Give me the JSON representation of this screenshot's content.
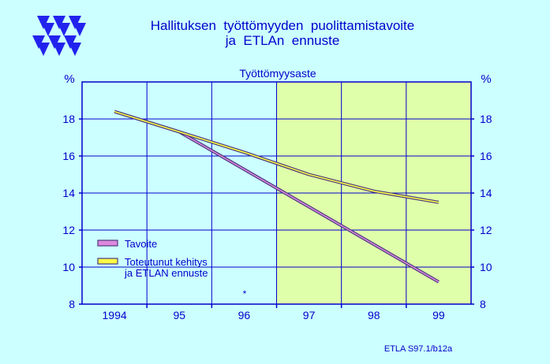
{
  "header": {
    "title_line1": "Hallituksen  työttömyyden  puolittamistavoite",
    "title_line2": "ja  ETLAn  ennuste"
  },
  "footer": {
    "source": "ETLA S97.1/b12a"
  },
  "colors": {
    "background": "#ccffff",
    "plot_history": "#ccffff",
    "plot_forecast": "#e0ffaa",
    "axis": "#0000cc",
    "grid": "#0000cc",
    "logo": "#2222ee",
    "text": "#0000cc",
    "tavoite": "#dd88dd",
    "toteutunut": "#ffff44",
    "line_border": "#4a3a80"
  },
  "chart_data": {
    "type": "line",
    "title": "Työttömyysaste",
    "ylabel_left": "%",
    "ylabel_right": "%",
    "categories": [
      "1994",
      "95",
      "96",
      "97",
      "98",
      "99"
    ],
    "x_range": [
      1993.5,
      1999.5
    ],
    "ylim": [
      8,
      20
    ],
    "yticks": [
      8,
      10,
      12,
      14,
      16,
      18
    ],
    "ytick_labels": [
      "8",
      "10",
      "12",
      "14",
      "16",
      "18"
    ],
    "forecast_start": 1996.5,
    "grid": true,
    "legend_position": "bottom-left",
    "annotation": "*",
    "series": [
      {
        "name": "Tavoite",
        "color_key": "tavoite",
        "points": [
          [
            1994.0,
            18.4
          ],
          [
            1995.0,
            17.3
          ],
          [
            1999.0,
            9.2
          ]
        ]
      },
      {
        "name": "Toteutunut kehitys\nja ETLAN ennuste",
        "name_line1": "Toteutunut kehitys",
        "name_line2": "ja ETLAN ennuste",
        "color_key": "toteutunut",
        "points": [
          [
            1994.0,
            18.4
          ],
          [
            1995.0,
            17.3
          ],
          [
            1996.0,
            16.2
          ],
          [
            1997.0,
            15.0
          ],
          [
            1998.0,
            14.1
          ],
          [
            1999.0,
            13.5
          ]
        ]
      }
    ]
  }
}
